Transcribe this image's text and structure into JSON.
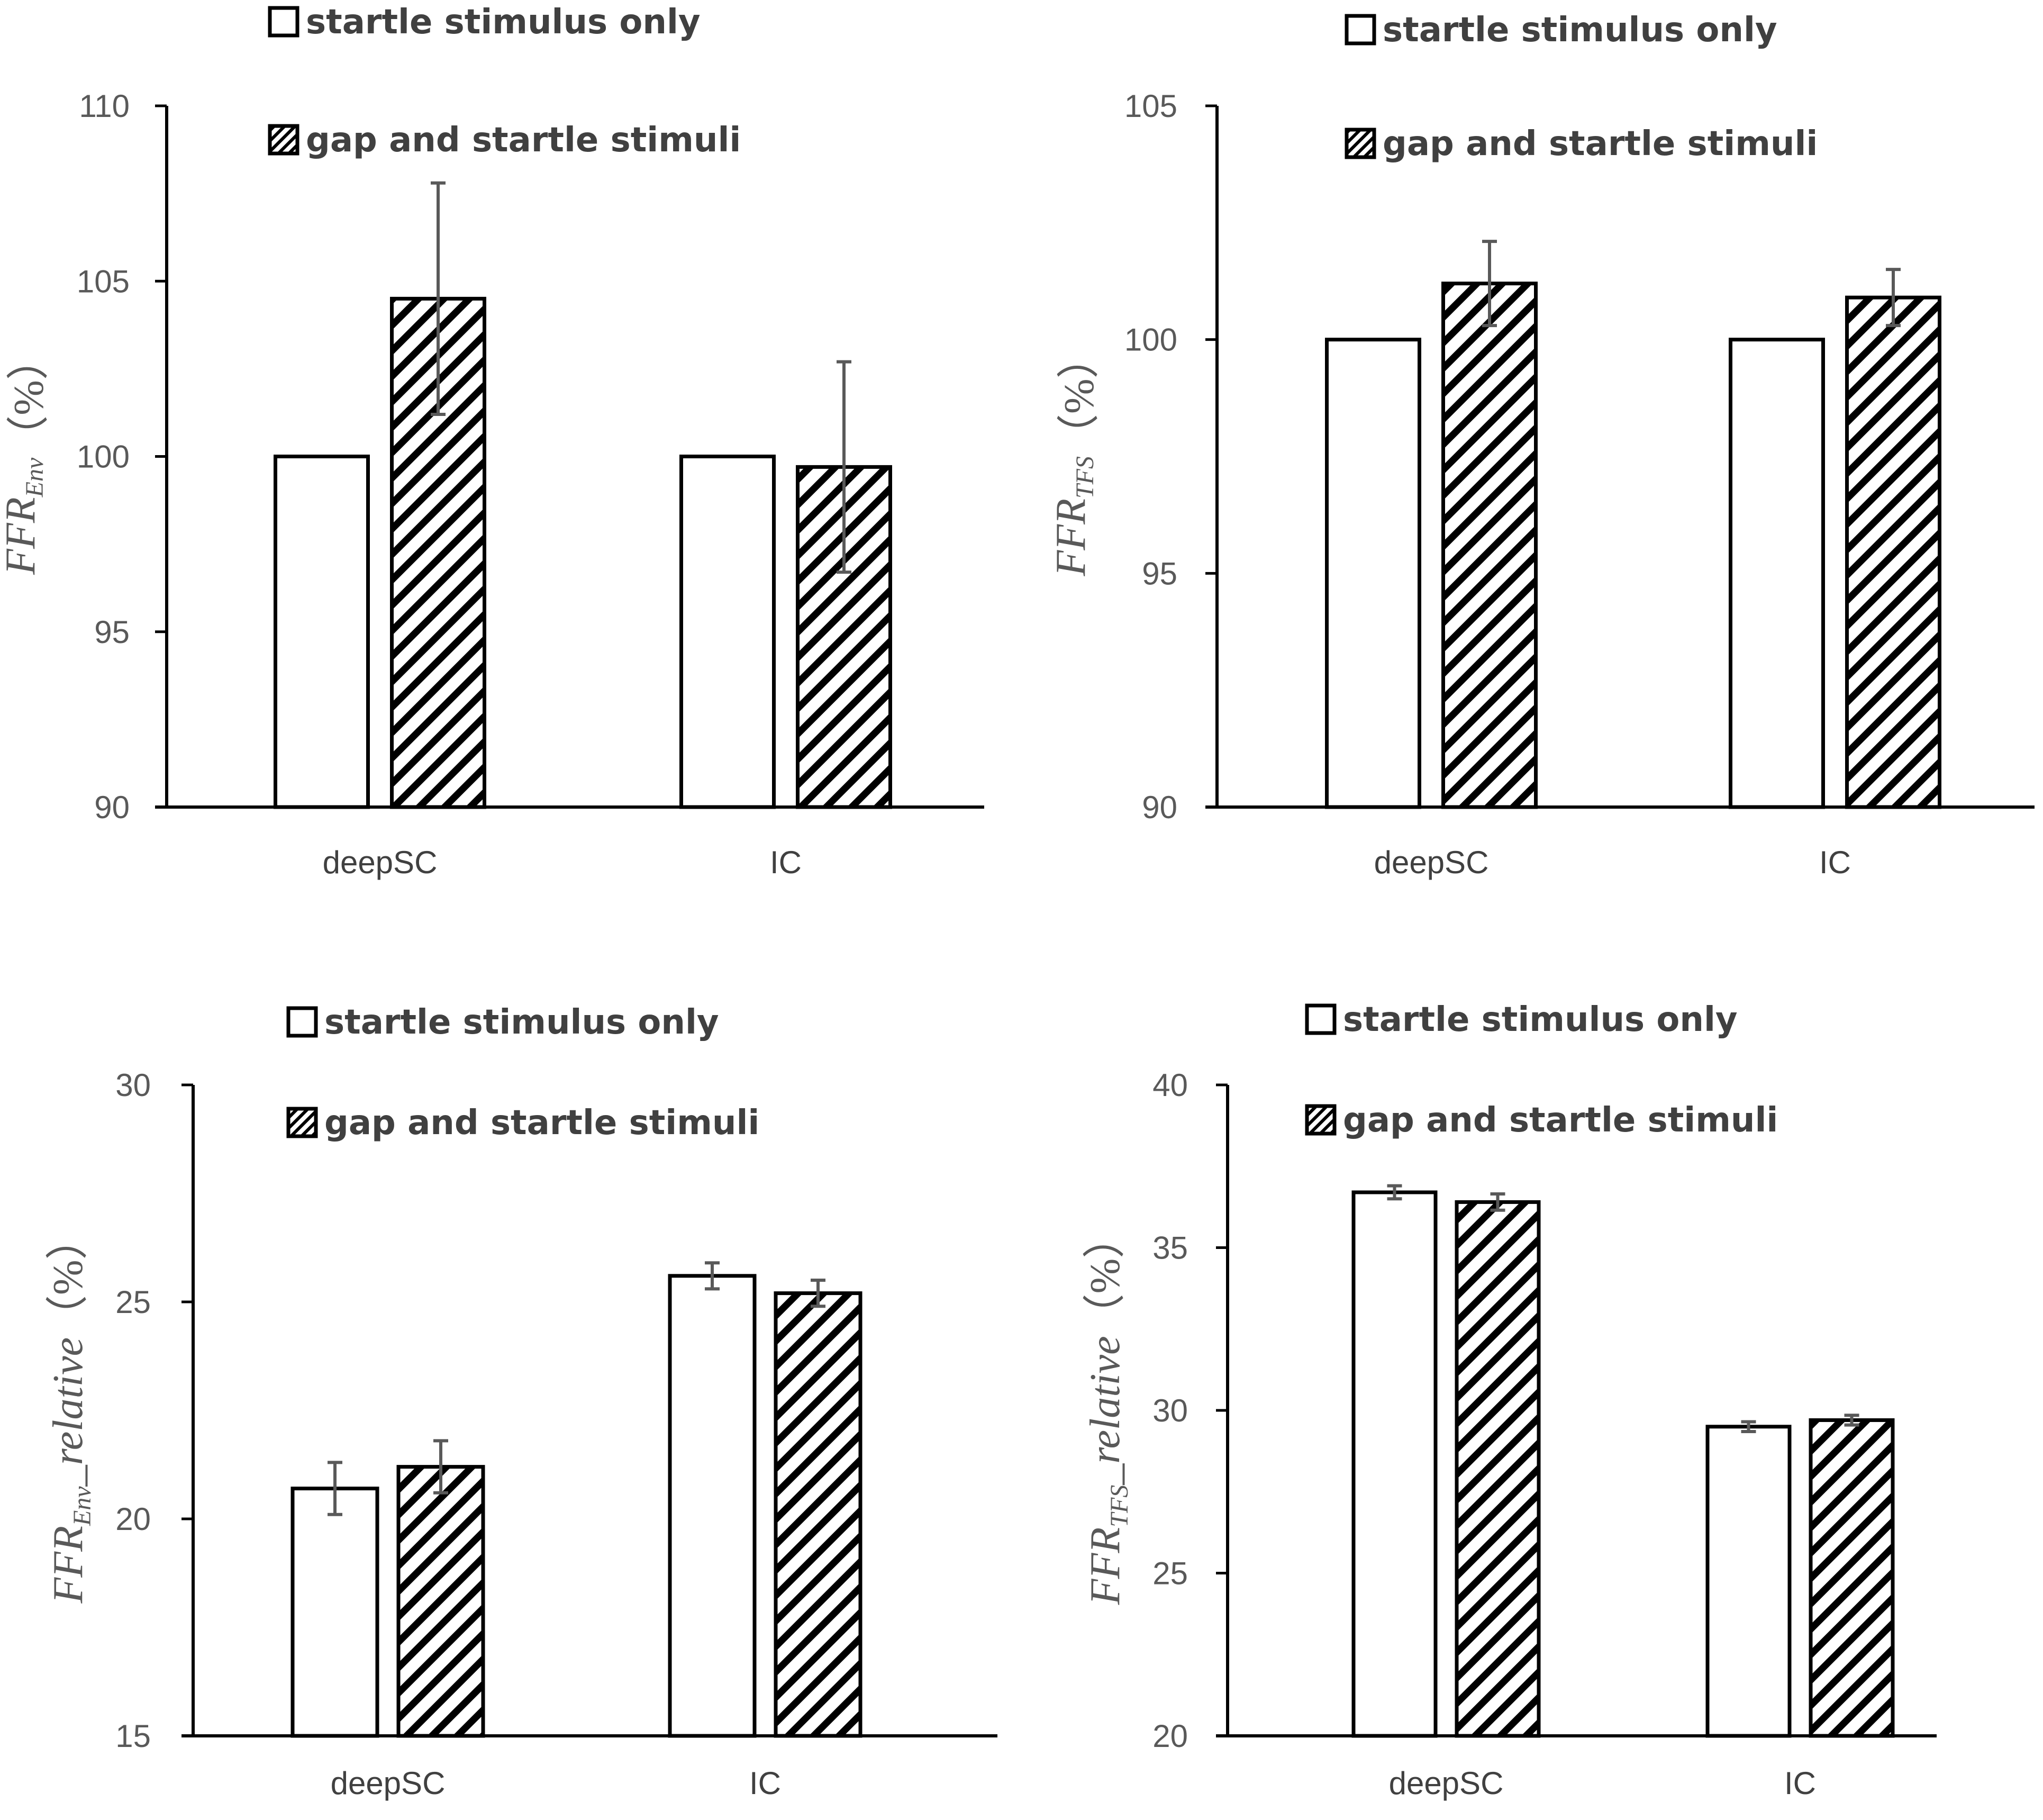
{
  "colors": {
    "axis": "#000000",
    "bar_outline": "#000000",
    "bar_fill": "#ffffff",
    "hatch": "#000000",
    "error_bar": "#595959"
  },
  "chart_data": [
    {
      "type": "bar",
      "panel": "top-left",
      "categories": [
        "deepSC",
        "IC"
      ],
      "series": [
        {
          "name": "startle stimulus only",
          "pattern": "solid",
          "values": [
            100,
            100
          ],
          "errors": [
            0,
            0
          ]
        },
        {
          "name": "gap and startle stimuli",
          "pattern": "hatched",
          "values": [
            104.5,
            99.7
          ],
          "errors": [
            3.3,
            3.0
          ]
        }
      ],
      "ylim": [
        90,
        110
      ],
      "yticks": [
        "90",
        "95",
        "100",
        "105",
        "110"
      ],
      "ylabel": {
        "main": "FFR",
        "sub": "Env",
        "suffix": "",
        "unit": "（%）"
      },
      "legend_position": "top-left"
    },
    {
      "type": "bar",
      "panel": "top-right",
      "categories": [
        "deepSC",
        "IC"
      ],
      "series": [
        {
          "name": "startle stimulus only",
          "pattern": "solid",
          "values": [
            100,
            100
          ],
          "errors": [
            0,
            0
          ]
        },
        {
          "name": "gap and startle stimuli",
          "pattern": "hatched",
          "values": [
            101.2,
            100.9
          ],
          "errors": [
            0.9,
            0.6
          ]
        }
      ],
      "ylim": [
        90,
        105
      ],
      "yticks": [
        "90",
        "95",
        "100",
        "105"
      ],
      "ylabel": {
        "main": "FFR",
        "sub": "TFS",
        "suffix": "",
        "unit": "（%）"
      },
      "legend_position": "top-left"
    },
    {
      "type": "bar",
      "panel": "bottom-left",
      "categories": [
        "deepSC",
        "IC"
      ],
      "series": [
        {
          "name": "startle stimulus only",
          "pattern": "solid",
          "values": [
            20.7,
            25.6
          ],
          "errors": [
            0.6,
            0.3
          ]
        },
        {
          "name": "gap and startle stimuli",
          "pattern": "hatched",
          "values": [
            21.2,
            25.2
          ],
          "errors": [
            0.6,
            0.3
          ]
        }
      ],
      "ylim": [
        15,
        30
      ],
      "yticks": [
        "15",
        "20",
        "25",
        "30"
      ],
      "ylabel": {
        "main": "FFR",
        "sub": "Env",
        "suffix": "_relative",
        "unit": "（%）"
      },
      "legend_position": "top-left"
    },
    {
      "type": "bar",
      "panel": "bottom-right",
      "categories": [
        "deepSC",
        "IC"
      ],
      "series": [
        {
          "name": "startle stimulus only",
          "pattern": "solid",
          "values": [
            36.7,
            29.5
          ],
          "errors": [
            0.2,
            0.15
          ]
        },
        {
          "name": "gap and startle stimuli",
          "pattern": "hatched",
          "values": [
            36.4,
            29.7
          ],
          "errors": [
            0.25,
            0.15
          ]
        }
      ],
      "ylim": [
        20,
        40
      ],
      "yticks": [
        "20",
        "25",
        "30",
        "35",
        "40"
      ],
      "ylabel": {
        "main": "FFR",
        "sub": "TFS",
        "suffix": "_relative",
        "unit": "（%）"
      },
      "legend_position": "top-left"
    }
  ]
}
